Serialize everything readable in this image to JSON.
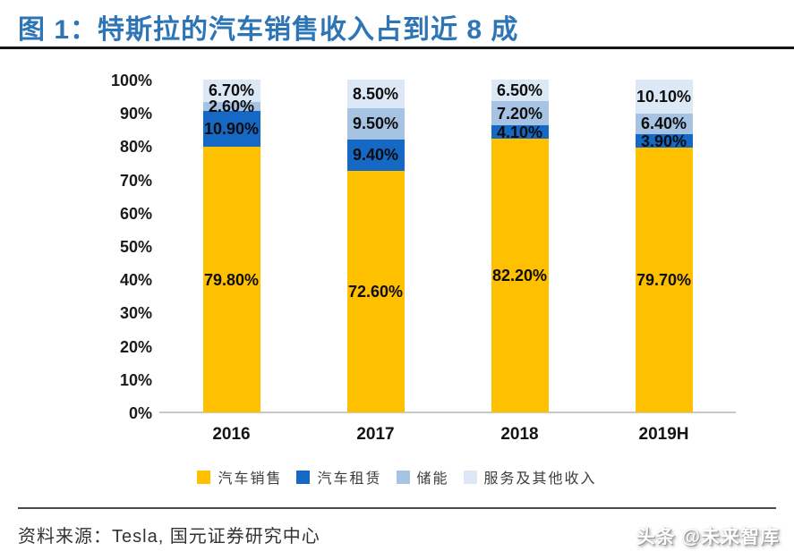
{
  "title": {
    "text": "图 1：特斯拉的汽车销售收入占到近 8 成"
  },
  "chart_data": {
    "type": "bar",
    "stacked": true,
    "percent_stacked": true,
    "title": "特斯拉的汽车销售收入占到近 8 成",
    "categories": [
      "2016",
      "2017",
      "2018",
      "2019H"
    ],
    "series": [
      {
        "name": "汽车销售",
        "color": "#FFC000",
        "values": [
          79.8,
          72.6,
          82.2,
          79.7
        ],
        "labels": [
          "79.80%",
          "72.60%",
          "82.20%",
          "79.70%"
        ]
      },
      {
        "name": "汽车租赁",
        "color": "#1568C4",
        "values": [
          10.9,
          9.4,
          4.1,
          3.9
        ],
        "labels": [
          "10.90%",
          "9.40%",
          "4.10%",
          "3.90%"
        ]
      },
      {
        "name": "储能",
        "color": "#A6C3E4",
        "values": [
          2.6,
          9.5,
          7.2,
          6.4
        ],
        "labels": [
          "2.60%",
          "9.50%",
          "7.20%",
          "6.40%"
        ]
      },
      {
        "name": "服务及其他收入",
        "color": "#DCE8F6",
        "values": [
          6.7,
          8.5,
          6.5,
          10.1
        ],
        "labels": [
          "6.70%",
          "8.50%",
          "6.50%",
          "10.10%"
        ]
      }
    ],
    "xlabel": "",
    "ylabel": "",
    "ylim": [
      0,
      100
    ],
    "y_ticks": [
      {
        "value": 0,
        "label": "0%"
      },
      {
        "value": 10,
        "label": "10%"
      },
      {
        "value": 20,
        "label": "20%"
      },
      {
        "value": 30,
        "label": "30%"
      },
      {
        "value": 40,
        "label": "40%"
      },
      {
        "value": 50,
        "label": "50%"
      },
      {
        "value": 60,
        "label": "60%"
      },
      {
        "value": 70,
        "label": "70%"
      },
      {
        "value": 80,
        "label": "80%"
      },
      {
        "value": 90,
        "label": "90%"
      },
      {
        "value": 100,
        "label": "100%"
      }
    ],
    "grid": false,
    "legend_position": "bottom"
  },
  "footer": {
    "source": "资料来源：Tesla, 国元证券研究中心",
    "watermark": "头条 @未来智库"
  },
  "colors": {
    "title_blue": "#2E75B6",
    "axis_line_gray": "#C8C8C8",
    "rule_dark": "#151515"
  }
}
